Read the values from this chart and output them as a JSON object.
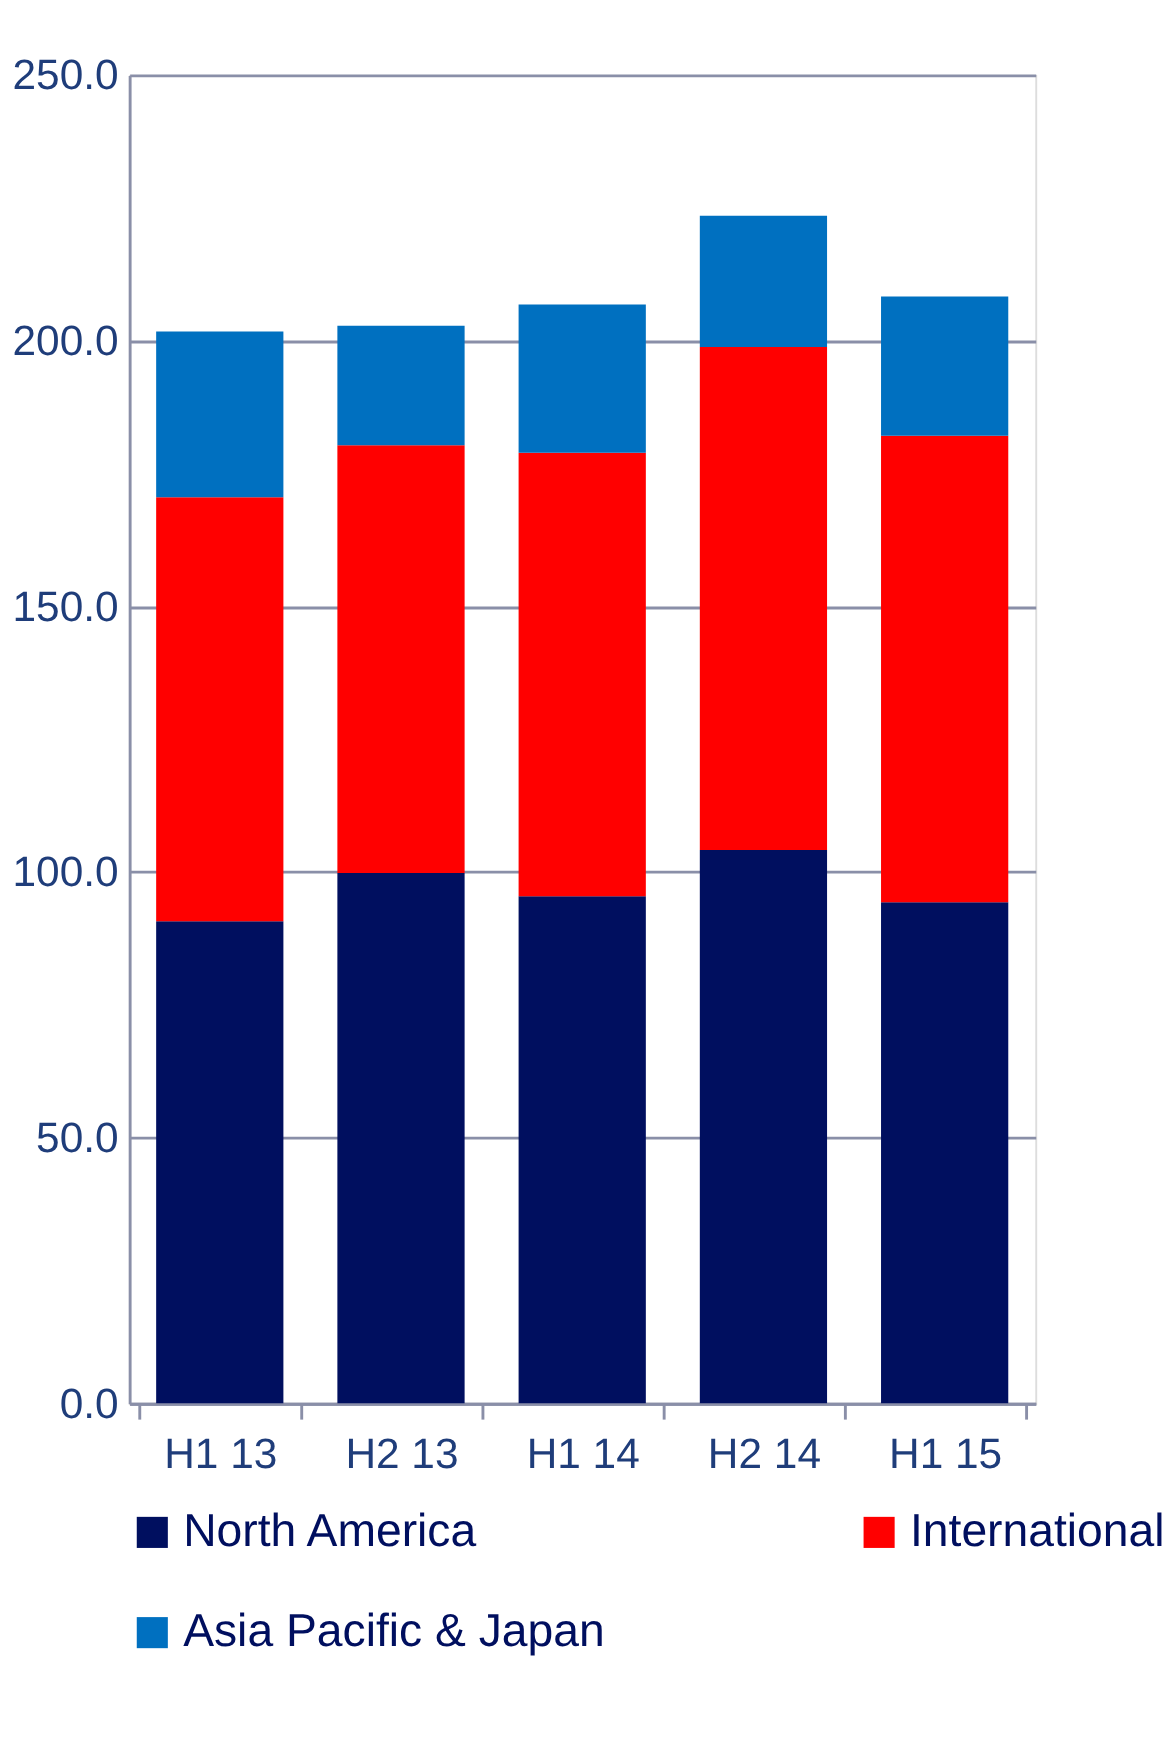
{
  "chart_data": {
    "type": "bar",
    "stacked": true,
    "categories": [
      "H1 13",
      "H2 13",
      "H1 14",
      "H2 14",
      "H1 15"
    ],
    "series": [
      {
        "name": "North America",
        "color": "#000f5f",
        "values": [
          90.7,
          99.8,
          95.4,
          104.1,
          94.3
        ]
      },
      {
        "name": "International",
        "color": "#ff0000",
        "values": [
          79.8,
          80.5,
          83.5,
          94.7,
          87.8
        ]
      },
      {
        "name": "Asia Pacific & Japan",
        "color": "#0070c0",
        "values": [
          31.2,
          22.5,
          27.9,
          24.7,
          26.2
        ]
      }
    ],
    "ylim": [
      0,
      250
    ],
    "yticks": [
      {
        "value": 0,
        "label": "0.0"
      },
      {
        "value": 50,
        "label": "50.0"
      },
      {
        "value": 100,
        "label": "100.0"
      },
      {
        "value": 150,
        "label": "150.0"
      },
      {
        "value": 200,
        "label": "200.0"
      },
      {
        "value": 250,
        "label": "250.0"
      }
    ],
    "grid": "y",
    "legend": "bottom"
  }
}
